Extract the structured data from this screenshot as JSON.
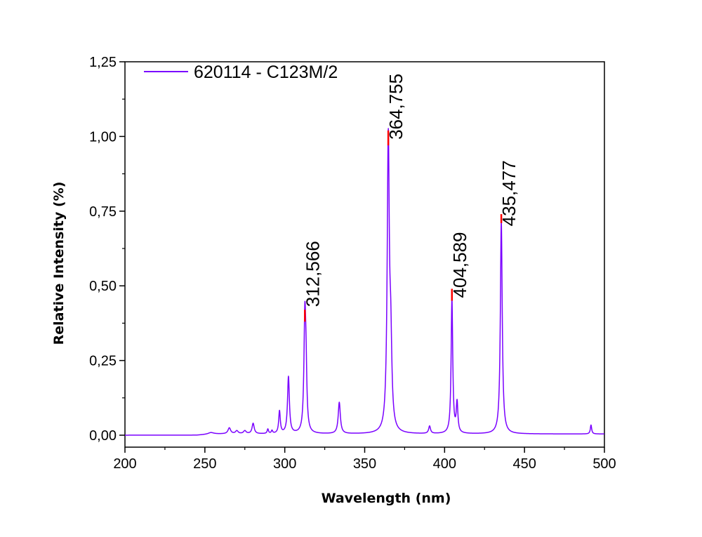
{
  "chart_data": {
    "type": "line",
    "xlabel": "Wavelength (nm)",
    "ylabel": "Relative Intensity (%)",
    "xlim": [
      200,
      500
    ],
    "ylim": [
      -0.04,
      1.25
    ],
    "xticks": [
      200,
      250,
      300,
      350,
      400,
      450,
      500
    ],
    "xtick_labels": [
      "200",
      "250",
      "300",
      "350",
      "400",
      "450",
      "500"
    ],
    "yticks": [
      0,
      0.25,
      0.5,
      0.75,
      1.0,
      1.25
    ],
    "ytick_labels": [
      "0,00",
      "0,25",
      "0,50",
      "0,75",
      "1,00",
      "1,25"
    ],
    "grid": false,
    "legend_position": "top-left",
    "series": [
      {
        "name": "620114 - C123M/2",
        "color": "#7a00ff",
        "peaks": [
          {
            "center": 253.7,
            "height": 0.005,
            "width": 2.0
          },
          {
            "center": 265.3,
            "height": 0.02,
            "width": 1.0
          },
          {
            "center": 270.0,
            "height": 0.01,
            "width": 1.0
          },
          {
            "center": 275.0,
            "height": 0.01,
            "width": 1.0
          },
          {
            "center": 280.2,
            "height": 0.035,
            "width": 0.8
          },
          {
            "center": 289.4,
            "height": 0.015,
            "width": 0.5
          },
          {
            "center": 292.0,
            "height": 0.01,
            "width": 0.5
          },
          {
            "center": 296.7,
            "height": 0.075,
            "width": 0.6
          },
          {
            "center": 302.3,
            "height": 0.19,
            "width": 0.7
          },
          {
            "center": 312.566,
            "height": 0.38,
            "width": 0.7
          },
          {
            "center": 313.3,
            "height": 0.15,
            "width": 0.6
          },
          {
            "center": 334.1,
            "height": 0.105,
            "width": 0.8
          },
          {
            "center": 364.755,
            "height": 0.97,
            "width": 0.8
          },
          {
            "center": 366.3,
            "height": 0.25,
            "width": 0.8
          },
          {
            "center": 390.6,
            "height": 0.025,
            "width": 0.7
          },
          {
            "center": 404.589,
            "height": 0.45,
            "width": 0.6
          },
          {
            "center": 407.8,
            "height": 0.1,
            "width": 0.6
          },
          {
            "center": 435.477,
            "height": 0.71,
            "width": 0.7
          },
          {
            "center": 491.6,
            "height": 0.03,
            "width": 0.5
          }
        ],
        "onset_wavelength": 245,
        "baseline_rise": 0.004
      }
    ],
    "saturated_tips": {
      "color": "#ff0000",
      "points": [
        {
          "x": 312.566,
          "y0": 0.38,
          "y1": 0.42
        },
        {
          "x": 364.755,
          "y0": 0.97,
          "y1": 1.02
        },
        {
          "x": 404.589,
          "y0": 0.45,
          "y1": 0.49
        },
        {
          "x": 435.477,
          "y0": 0.71,
          "y1": 0.74
        }
      ]
    },
    "annotations": [
      {
        "text": "312,566",
        "x": 312.566,
        "y": 0.42
      },
      {
        "text": "364,755",
        "x": 364.755,
        "y": 0.98
      },
      {
        "text": "404,589",
        "x": 404.589,
        "y": 0.45
      },
      {
        "text": "435,477",
        "x": 435.477,
        "y": 0.69
      }
    ]
  }
}
